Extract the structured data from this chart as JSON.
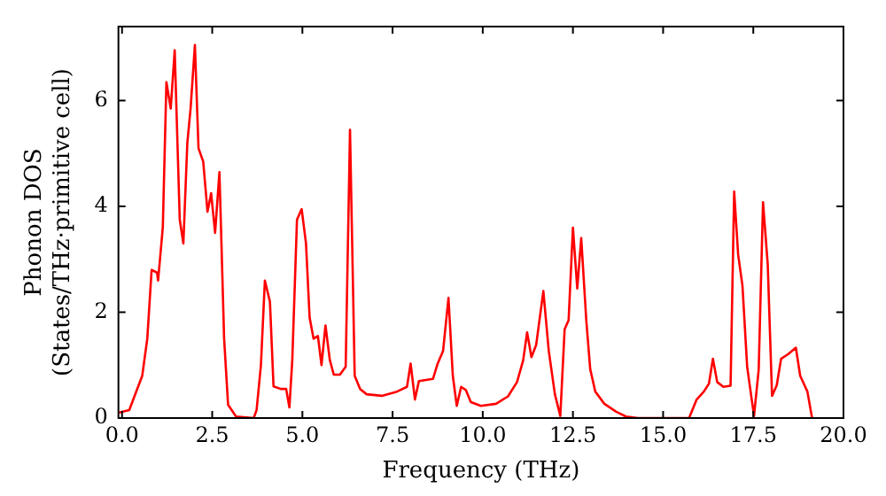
{
  "chart_data": {
    "type": "line",
    "xlabel": "Frequency (THz)",
    "ylabel": "Phonon DOS\n(States/THz·primitive cell)",
    "x": [
      -0.1,
      0.2,
      0.56,
      0.7,
      0.82,
      0.97,
      1.0,
      1.13,
      1.23,
      1.35,
      1.46,
      1.6,
      1.7,
      1.81,
      1.9,
      2.02,
      2.12,
      2.25,
      2.37,
      2.47,
      2.58,
      2.7,
      2.83,
      2.94,
      3.16,
      3.65,
      3.73,
      3.85,
      3.96,
      4.1,
      4.2,
      4.4,
      4.55,
      4.64,
      4.72,
      4.85,
      4.98,
      5.1,
      5.2,
      5.31,
      5.43,
      5.53,
      5.64,
      5.76,
      5.87,
      6.04,
      6.2,
      6.32,
      6.45,
      6.6,
      6.78,
      7.2,
      7.62,
      7.9,
      8.0,
      8.12,
      8.23,
      8.62,
      8.75,
      8.9,
      9.05,
      9.17,
      9.28,
      9.4,
      9.53,
      9.67,
      9.95,
      10.37,
      10.7,
      10.95,
      11.12,
      11.23,
      11.35,
      11.48,
      11.68,
      11.83,
      12.0,
      12.15,
      12.27,
      12.38,
      12.5,
      12.62,
      12.73,
      12.87,
      12.98,
      13.12,
      13.37,
      13.7,
      13.97,
      14.3,
      15.72,
      15.93,
      16.13,
      16.27,
      16.38,
      16.5,
      16.67,
      16.87,
      16.97,
      17.08,
      17.2,
      17.33,
      17.52,
      17.65,
      17.77,
      17.9,
      18.02,
      18.15,
      18.27,
      18.47,
      18.68,
      18.8,
      19.0,
      19.13
    ],
    "series": [
      {
        "color": "#ff0000",
        "values": [
          0.1,
          0.15,
          0.8,
          1.5,
          2.8,
          2.75,
          2.6,
          3.6,
          6.35,
          5.85,
          6.95,
          3.75,
          3.3,
          5.2,
          5.85,
          7.05,
          5.1,
          4.85,
          3.9,
          4.25,
          3.5,
          4.65,
          1.5,
          0.25,
          0.03,
          0,
          0.15,
          1.0,
          2.6,
          2.2,
          0.6,
          0.55,
          0.55,
          0.2,
          1.1,
          3.75,
          3.95,
          3.3,
          1.9,
          1.5,
          1.55,
          1.0,
          1.75,
          1.1,
          0.82,
          0.82,
          0.97,
          5.45,
          0.8,
          0.55,
          0.45,
          0.42,
          0.5,
          0.59,
          1.03,
          0.35,
          0.7,
          0.74,
          1.03,
          1.27,
          2.27,
          0.8,
          0.23,
          0.59,
          0.53,
          0.3,
          0.23,
          0.27,
          0.41,
          0.68,
          1.09,
          1.62,
          1.15,
          1.38,
          2.4,
          1.27,
          0.45,
          0.04,
          1.68,
          1.85,
          3.6,
          2.45,
          3.4,
          1.85,
          0.92,
          0.5,
          0.27,
          0.12,
          0.03,
          0,
          0,
          0.35,
          0.5,
          0.65,
          1.12,
          0.68,
          0.59,
          0.61,
          4.28,
          3.09,
          2.5,
          0.97,
          0.04,
          0.92,
          4.08,
          2.91,
          0.42,
          0.62,
          1.12,
          1.21,
          1.33,
          0.8,
          0.5,
          0
        ]
      }
    ],
    "xlim": [
      -0.1,
      20
    ],
    "xticks": [
      {
        "value": 0,
        "label": "0.0"
      },
      {
        "value": 2.5,
        "label": "2.5"
      },
      {
        "value": 5,
        "label": "5.0"
      },
      {
        "value": 7.5,
        "label": "7.5"
      },
      {
        "value": 10,
        "label": "10.0"
      },
      {
        "value": 12.5,
        "label": "12.5"
      },
      {
        "value": 15,
        "label": "15.0"
      },
      {
        "value": 17.5,
        "label": "17.5"
      },
      {
        "value": 20,
        "label": "20.0"
      }
    ],
    "ylim": [
      0,
      7.4
    ],
    "yticks": [
      0,
      2,
      4,
      6
    ],
    "grid": false,
    "legend": false,
    "marker": "none",
    "line_style": "solid"
  }
}
